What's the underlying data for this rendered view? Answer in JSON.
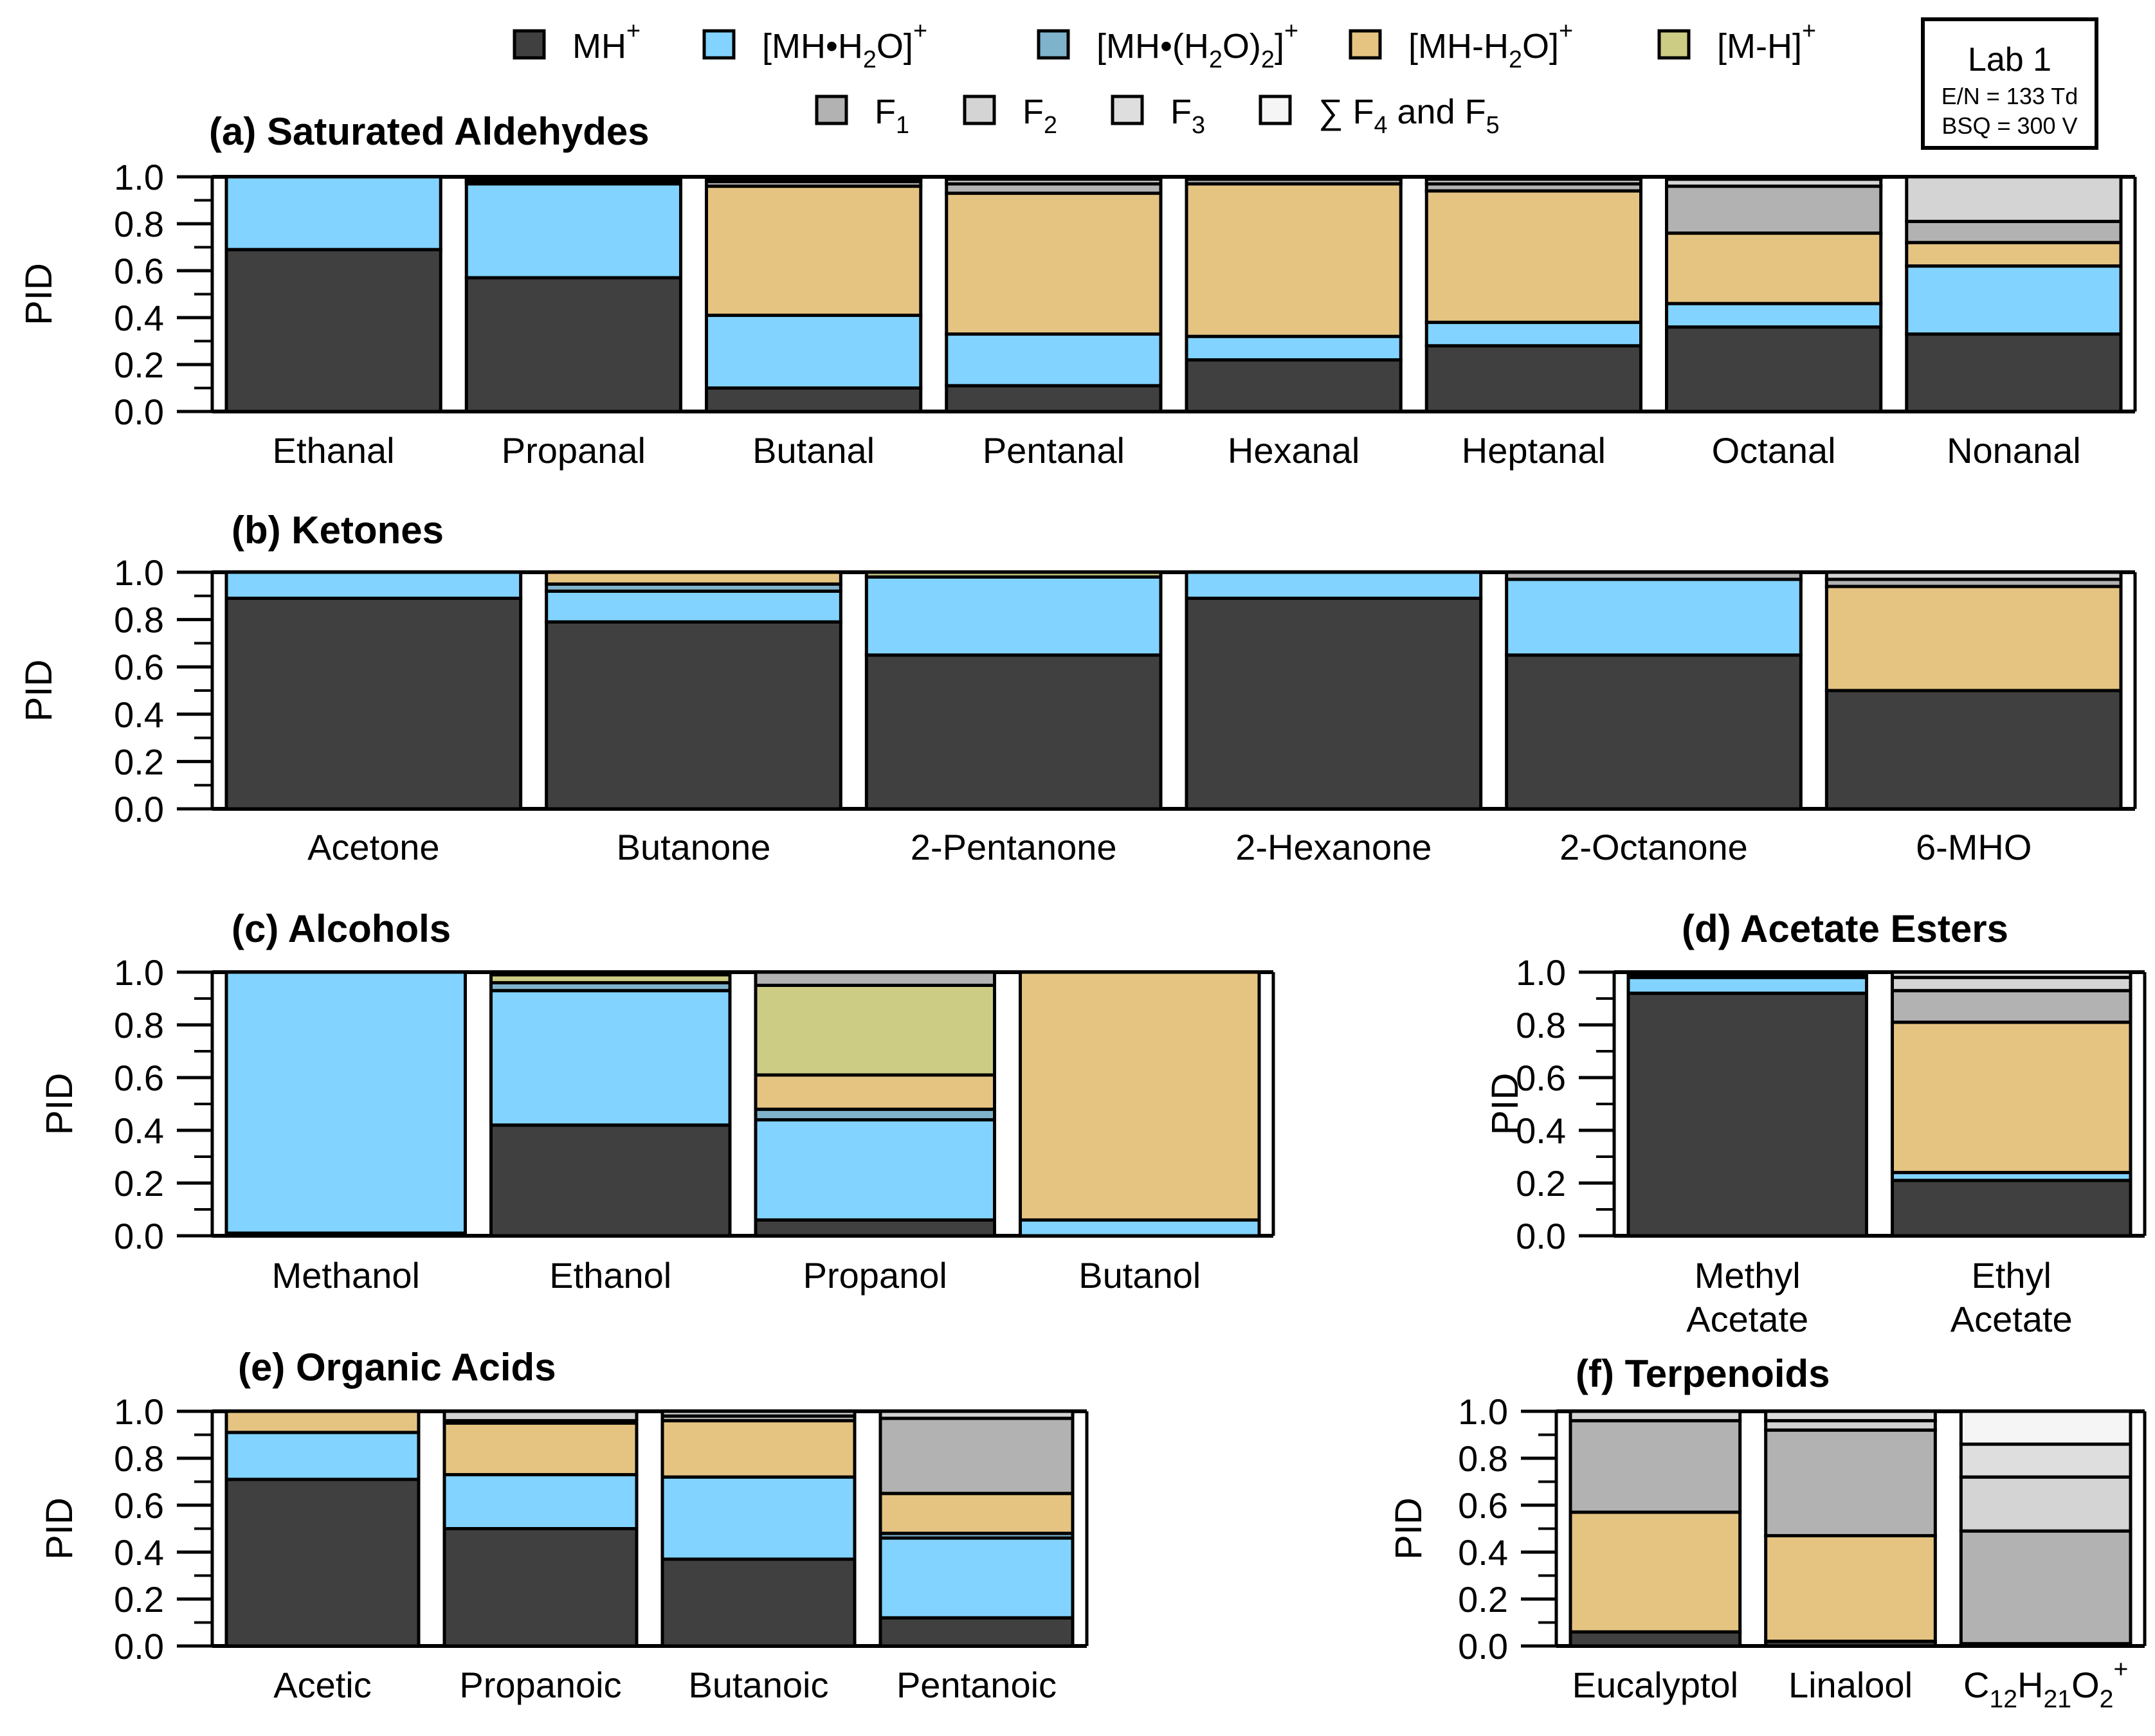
{
  "chart_data": [
    {
      "type": "bar",
      "stacked": true,
      "panel": "a",
      "title": "(a) Saturated Aldehydes",
      "ylabel": "PID",
      "ylim": [
        0,
        1
      ],
      "yticks": [
        "0.0",
        "0.2",
        "0.4",
        "0.6",
        "0.8",
        "1.0"
      ],
      "categories": [
        "Ethanal",
        "Propanal",
        "Butanal",
        "Pentanal",
        "Hexanal",
        "Heptanal",
        "Octanal",
        "Nonanal"
      ],
      "series": [
        {
          "name": "MH+",
          "values": [
            0.69,
            0.57,
            0.1,
            0.11,
            0.22,
            0.28,
            0.36,
            0.33
          ]
        },
        {
          "name": "[MH•H2O]+",
          "values": [
            0.31,
            0.4,
            0.31,
            0.22,
            0.1,
            0.1,
            0.1,
            0.29
          ]
        },
        {
          "name": "[MH•(H2O)2]+",
          "values": [
            0,
            0,
            0,
            0,
            0,
            0,
            0,
            0
          ]
        },
        {
          "name": "[MH-H2O]+",
          "values": [
            0,
            0.01,
            0.55,
            0.6,
            0.65,
            0.56,
            0.3,
            0.1
          ]
        },
        {
          "name": "[M-H]+",
          "values": [
            0,
            0,
            0,
            0,
            0,
            0,
            0,
            0
          ]
        },
        {
          "name": "F1",
          "values": [
            0,
            0.01,
            0.02,
            0.04,
            0.02,
            0.03,
            0.2,
            0.09
          ]
        },
        {
          "name": "F2",
          "values": [
            0,
            0.01,
            0.01,
            0.02,
            0.01,
            0.02,
            0.03,
            0.19
          ]
        },
        {
          "name": "F3",
          "values": [
            0,
            0,
            0.01,
            0.01,
            0,
            0.01,
            0.01,
            0
          ]
        },
        {
          "name": "∑ F4 and F5",
          "values": [
            0,
            0,
            0,
            0,
            0,
            0,
            0,
            0
          ]
        }
      ]
    },
    {
      "type": "bar",
      "stacked": true,
      "panel": "b",
      "title": "(b) Ketones",
      "ylabel": "PID",
      "ylim": [
        0,
        1
      ],
      "yticks": [
        "0.0",
        "0.2",
        "0.4",
        "0.6",
        "0.8",
        "1.0"
      ],
      "categories": [
        "Acetone",
        "Butanone",
        "2-Pentanone",
        "2-Hexanone",
        "2-Octanone",
        "6-MHO"
      ],
      "series": [
        {
          "name": "MH+",
          "values": [
            0.89,
            0.79,
            0.65,
            0.89,
            0.65,
            0.5
          ]
        },
        {
          "name": "[MH•H2O]+",
          "values": [
            0.11,
            0.13,
            0.33,
            0.11,
            0.32,
            0
          ]
        },
        {
          "name": "[MH•(H2O)2]+",
          "values": [
            0,
            0.03,
            0,
            0,
            0,
            0
          ]
        },
        {
          "name": "[MH-H2O]+",
          "values": [
            0,
            0.05,
            0,
            0,
            0,
            0.44
          ]
        },
        {
          "name": "[M-H]+",
          "values": [
            0,
            0,
            0.02,
            0,
            0,
            0
          ]
        },
        {
          "name": "F1",
          "values": [
            0,
            0,
            0,
            0,
            0.03,
            0.03
          ]
        },
        {
          "name": "F2",
          "values": [
            0,
            0,
            0,
            0,
            0,
            0.03
          ]
        },
        {
          "name": "F3",
          "values": [
            0,
            0,
            0,
            0,
            0,
            0
          ]
        },
        {
          "name": "∑ F4 and F5",
          "values": [
            0,
            0,
            0,
            0,
            0,
            0
          ]
        }
      ]
    },
    {
      "type": "bar",
      "stacked": true,
      "panel": "c",
      "title": "(c) Alcohols",
      "ylabel": "PID",
      "ylim": [
        0,
        1
      ],
      "yticks": [
        "0.0",
        "0.2",
        "0.4",
        "0.6",
        "0.8",
        "1.0"
      ],
      "categories": [
        "Methanol",
        "Ethanol",
        "Propanol",
        "Butanol"
      ],
      "series": [
        {
          "name": "MH+",
          "values": [
            0.01,
            0.42,
            0.06,
            0
          ]
        },
        {
          "name": "[MH•H2O]+",
          "values": [
            0.99,
            0.51,
            0.38,
            0.06
          ]
        },
        {
          "name": "[MH•(H2O)2]+",
          "values": [
            0,
            0.03,
            0.04,
            0
          ]
        },
        {
          "name": "[MH-H2O]+",
          "values": [
            0,
            0,
            0.13,
            0.94
          ]
        },
        {
          "name": "[M-H]+",
          "values": [
            0,
            0.03,
            0.34,
            0
          ]
        },
        {
          "name": "F1",
          "values": [
            0,
            0,
            0.05,
            0
          ]
        },
        {
          "name": "F2",
          "values": [
            0,
            0,
            0,
            0
          ]
        },
        {
          "name": "F3",
          "values": [
            0,
            0,
            0,
            0
          ]
        },
        {
          "name": "∑ F4 and F5",
          "values": [
            0,
            0,
            0,
            0
          ]
        }
      ]
    },
    {
      "type": "bar",
      "stacked": true,
      "panel": "d",
      "title": "(d) Acetate Esters",
      "ylabel": "PID",
      "ylim": [
        0,
        1
      ],
      "yticks": [
        "0.0",
        "0.2",
        "0.4",
        "0.6",
        "0.8",
        "1.0"
      ],
      "categories": [
        "Methyl Acetate",
        "Ethyl Acetate"
      ],
      "series": [
        {
          "name": "MH+",
          "values": [
            0.92,
            0.21
          ]
        },
        {
          "name": "[MH•H2O]+",
          "values": [
            0.06,
            0.03
          ]
        },
        {
          "name": "[MH•(H2O)2]+",
          "values": [
            0,
            0
          ]
        },
        {
          "name": "[MH-H2O]+",
          "values": [
            0,
            0.57
          ]
        },
        {
          "name": "[M-H]+",
          "values": [
            0,
            0
          ]
        },
        {
          "name": "F1",
          "values": [
            0.01,
            0.12
          ]
        },
        {
          "name": "F2",
          "values": [
            0.01,
            0.05
          ]
        },
        {
          "name": "F3",
          "values": [
            0,
            0.02
          ]
        },
        {
          "name": "∑ F4 and F5",
          "values": [
            0,
            0
          ]
        }
      ]
    },
    {
      "type": "bar",
      "stacked": true,
      "panel": "e",
      "title": "(e) Organic Acids",
      "ylabel": "PID",
      "ylim": [
        0,
        1
      ],
      "yticks": [
        "0.0",
        "0.2",
        "0.4",
        "0.6",
        "0.8",
        "1.0"
      ],
      "categories": [
        "Acetic",
        "Propanoic",
        "Butanoic",
        "Pentanoic"
      ],
      "series": [
        {
          "name": "MH+",
          "values": [
            0.71,
            0.5,
            0.37,
            0.12
          ]
        },
        {
          "name": "[MH•H2O]+",
          "values": [
            0.2,
            0.23,
            0.35,
            0.34
          ]
        },
        {
          "name": "[MH•(H2O)2]+",
          "values": [
            0,
            0,
            0,
            0.02
          ]
        },
        {
          "name": "[MH-H2O]+",
          "values": [
            0.09,
            0.22,
            0.24,
            0.17
          ]
        },
        {
          "name": "[M-H]+",
          "values": [
            0,
            0,
            0,
            0
          ]
        },
        {
          "name": "F1",
          "values": [
            0,
            0.01,
            0.02,
            0.32
          ]
        },
        {
          "name": "F2",
          "values": [
            0,
            0.04,
            0.02,
            0.03
          ]
        },
        {
          "name": "F3",
          "values": [
            0,
            0,
            0,
            0
          ]
        },
        {
          "name": "∑ F4 and F5",
          "values": [
            0,
            0,
            0,
            0
          ]
        }
      ]
    },
    {
      "type": "bar",
      "stacked": true,
      "panel": "f",
      "title": "(f) Terpenoids",
      "ylabel": "PID",
      "ylim": [
        0,
        1
      ],
      "yticks": [
        "0.0",
        "0.2",
        "0.4",
        "0.6",
        "0.8",
        "1.0"
      ],
      "categories": [
        "Eucalyptol",
        "Linalool",
        "C12H21O2+"
      ],
      "category_labels_rich": [
        [
          {
            "t": "Eucalyptol",
            "s": ""
          }
        ],
        [
          {
            "t": "Linalool",
            "s": ""
          }
        ],
        [
          {
            "t": "C",
            "s": ""
          },
          {
            "t": "12",
            "s": "sub"
          },
          {
            "t": "H",
            "s": ""
          },
          {
            "t": "21",
            "s": "sub"
          },
          {
            "t": "O",
            "s": ""
          },
          {
            "t": "2",
            "s": "sub"
          },
          {
            "t": "+",
            "s": "sup"
          }
        ]
      ],
      "series": [
        {
          "name": "MH+",
          "values": [
            0.06,
            0.02,
            0.01
          ]
        },
        {
          "name": "[MH•H2O]+",
          "values": [
            0,
            0,
            0
          ]
        },
        {
          "name": "[MH•(H2O)2]+",
          "values": [
            0,
            0,
            0
          ]
        },
        {
          "name": "[MH-H2O]+",
          "values": [
            0.51,
            0.45,
            0
          ]
        },
        {
          "name": "[M-H]+",
          "values": [
            0,
            0,
            0
          ]
        },
        {
          "name": "F1",
          "values": [
            0.39,
            0.45,
            0.48
          ]
        },
        {
          "name": "F2",
          "values": [
            0.04,
            0.04,
            0.23
          ]
        },
        {
          "name": "F3",
          "values": [
            0,
            0.04,
            0.14
          ]
        },
        {
          "name": "∑ F4 and F5",
          "values": [
            0,
            0,
            0.14
          ]
        }
      ]
    }
  ],
  "legend": {
    "items": [
      {
        "key": "MH+",
        "color": "#404040",
        "label": [
          {
            "t": "MH",
            "s": ""
          },
          {
            "t": "+",
            "s": "sup"
          }
        ]
      },
      {
        "key": "[MH•H2O]+",
        "color": "#82d3ff",
        "label": [
          {
            "t": "[MH•H",
            "s": ""
          },
          {
            "t": "2",
            "s": "sub"
          },
          {
            "t": "O]",
            "s": ""
          },
          {
            "t": "+",
            "s": "sup"
          }
        ]
      },
      {
        "key": "[MH•(H2O)2]+",
        "color": "#7fb3cc",
        "label": [
          {
            "t": "[MH•(H",
            "s": ""
          },
          {
            "t": "2",
            "s": "sub"
          },
          {
            "t": "O)",
            "s": ""
          },
          {
            "t": "2",
            "s": "sub"
          },
          {
            "t": "]",
            "s": ""
          },
          {
            "t": "+",
            "s": "sup"
          }
        ]
      },
      {
        "key": "[MH-H2O]+",
        "color": "#e5c482",
        "label": [
          {
            "t": "[MH-H",
            "s": ""
          },
          {
            "t": "2",
            "s": "sub"
          },
          {
            "t": "O]",
            "s": ""
          },
          {
            "t": "+",
            "s": "sup"
          }
        ]
      },
      {
        "key": "[M-H]+",
        "color": "#cccc84",
        "label": [
          {
            "t": "[M-H]",
            "s": ""
          },
          {
            "t": "+",
            "s": "sup"
          }
        ]
      },
      {
        "key": "F1",
        "color": "#b2b2b2",
        "label": [
          {
            "t": "F",
            "s": ""
          },
          {
            "t": "1",
            "s": "sub"
          }
        ]
      },
      {
        "key": "F2",
        "color": "#d4d4d4",
        "label": [
          {
            "t": "F",
            "s": ""
          },
          {
            "t": "2",
            "s": "sub"
          }
        ]
      },
      {
        "key": "F3",
        "color": "#dedede",
        "label": [
          {
            "t": "F",
            "s": ""
          },
          {
            "t": "3",
            "s": "sub"
          }
        ]
      },
      {
        "key": "∑ F4 and F5",
        "color": "#f5f5f5",
        "label": [
          {
            "t": "∑ F",
            "s": ""
          },
          {
            "t": "4",
            "s": "sub"
          },
          {
            "t": " and F",
            "s": ""
          },
          {
            "t": "5",
            "s": "sub"
          }
        ]
      }
    ]
  },
  "info_box": {
    "title": "Lab 1",
    "line1": "E/N = 133 Td",
    "line2": "BSQ = 300 V"
  }
}
